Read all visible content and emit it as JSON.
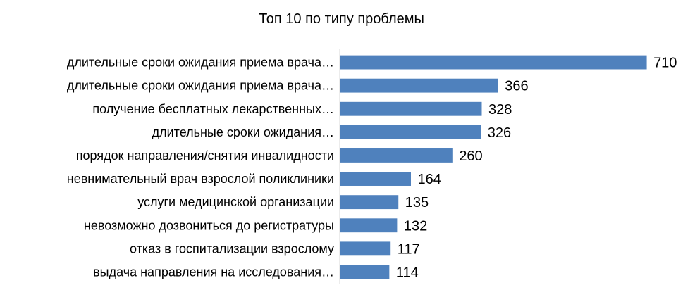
{
  "chart_data": {
    "type": "bar",
    "orientation": "horizontal",
    "title": "Топ 10 по типу проблемы",
    "xlabel": "",
    "ylabel": "",
    "categories": [
      "длительные сроки ожидания приема врача…",
      "длительные сроки ожидания приема врача…",
      "получение бесплатных лекарственных…",
      "длительные сроки ожидания…",
      "порядок направления/снятия инвалидности",
      "невнимательный врач взрослой поликлиники",
      "услуги медицинской организации",
      "невозможно дозвониться до регистратуры",
      "отказ в госпитализации взрослому",
      "выдача направления на исследования…"
    ],
    "values": [
      710,
      366,
      328,
      326,
      260,
      164,
      135,
      132,
      117,
      114
    ],
    "xlim": [
      0,
      736
    ],
    "grid": false,
    "legend": "none",
    "bar_color": "#4F81BD",
    "data_labels": true
  }
}
